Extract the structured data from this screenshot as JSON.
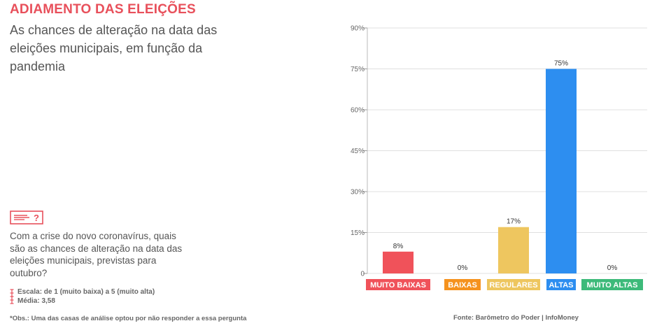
{
  "header": {
    "title": "ADIAMENTO DAS ELEIÇÕES",
    "subtitle": "As chances de alteração na data das eleições municipais, em função da pandemia"
  },
  "question": {
    "icon": "question-card-icon",
    "text": "Com a crise do novo coronavírus, quais são as chances de alteração na data das eleições municipais, previstas para outubro?"
  },
  "scale": {
    "icon": "scale-icon",
    "line1": "Escala: de 1 (muito baixa) a 5 (muito alta)",
    "line2": "Média: 3,58"
  },
  "footer": {
    "note": "*Obs.: Uma das casas de análise optou por não responder a essa pergunta",
    "source": "Fonte: Barômetro do Poder | InfoMoney"
  },
  "chart_data": {
    "type": "bar",
    "categories": [
      "MUITO BAIXAS",
      "BAIXAS",
      "REGULARES",
      "ALTAS",
      "MUITO ALTAS"
    ],
    "values": [
      8,
      0,
      17,
      75,
      0
    ],
    "value_labels": [
      "8%",
      "0%",
      "17%",
      "75%",
      "0%"
    ],
    "category_colors": [
      "#f0525a",
      "#f5921e",
      "#eec65f",
      "#2d8ef0",
      "#3dba7a"
    ],
    "yticks": [
      0,
      15,
      30,
      45,
      60,
      75,
      90
    ],
    "ytick_labels": [
      "0",
      "15%",
      "30%",
      "45%",
      "60%",
      "75%",
      "90%"
    ],
    "ylim": [
      0,
      90
    ],
    "grid": true,
    "title": "",
    "xlabel": "",
    "ylabel": ""
  },
  "colors": {
    "accent": "#e8505b",
    "grid": "#e0e0e0"
  }
}
